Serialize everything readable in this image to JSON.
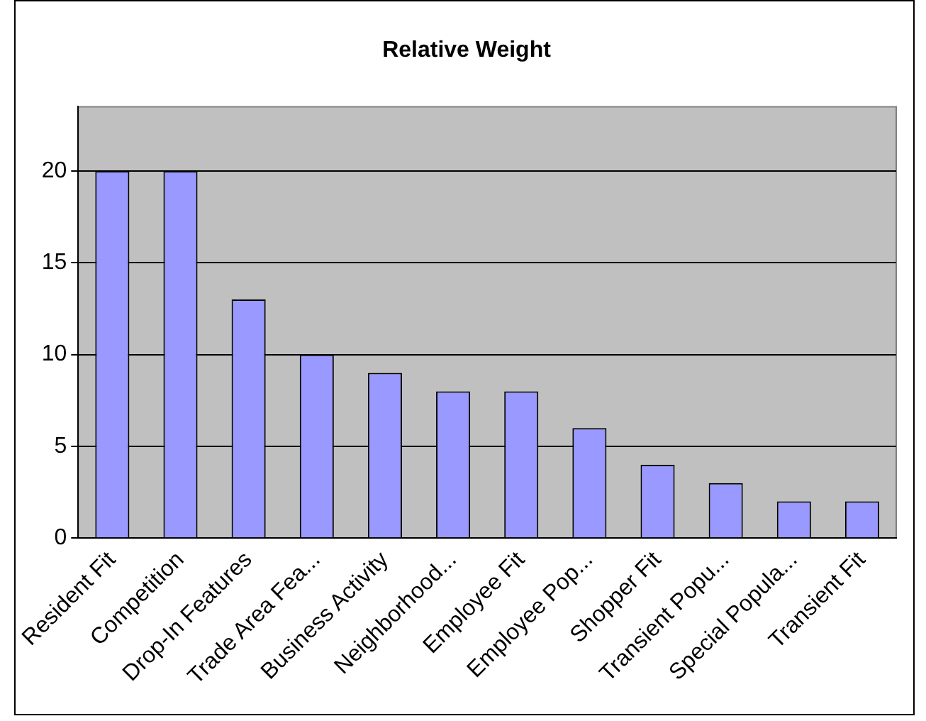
{
  "chart_data": {
    "type": "bar",
    "title": "Relative Weight",
    "categories": [
      "Resident Fit",
      "Competition",
      "Drop-In Features",
      "Trade Area Fea...",
      "Business Activity",
      "Neighborhood...",
      "Employee Fit",
      "Employee Pop...",
      "Shopper Fit",
      "Transient Popu...",
      "Special Popula...",
      "Transient Fit"
    ],
    "values": [
      20,
      20,
      13,
      10,
      9,
      8,
      8,
      6,
      4,
      3,
      2,
      2
    ],
    "color": "#9999ff",
    "ylim": [
      0,
      23.5
    ],
    "yticks": [
      0,
      5,
      10,
      15,
      20
    ],
    "grid": "y",
    "legend": false
  }
}
